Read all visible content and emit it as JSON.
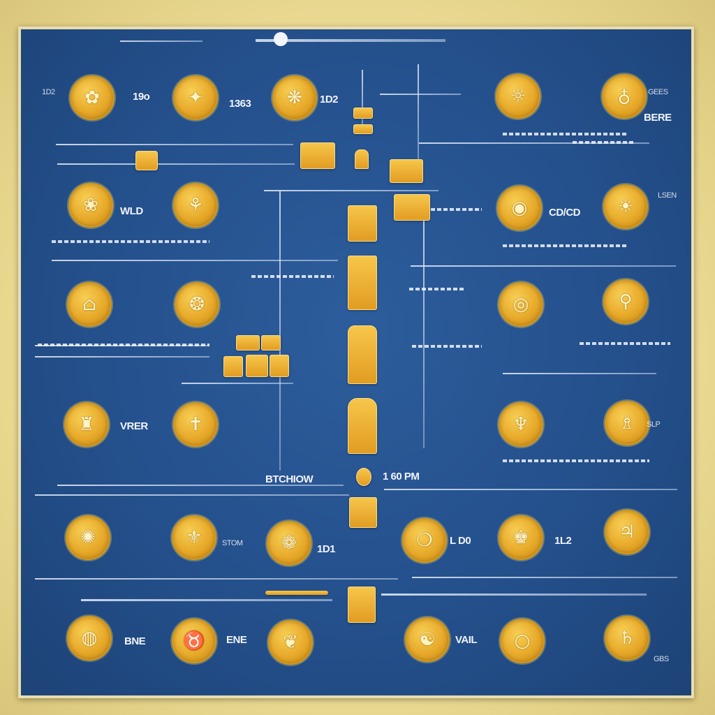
{
  "colors": {
    "board": "#24508c",
    "frame": "#e9ddb0",
    "coin_gold": "#e7a92a",
    "line": "#e6eefa"
  },
  "coins": [
    {
      "icon": "ornament-coin-icon"
    },
    {
      "icon": "ornament-coin-icon"
    },
    {
      "icon": "ornament-coin-icon"
    },
    {
      "icon": "ornament-coin-icon"
    },
    {
      "icon": "ornament-coin-icon"
    },
    {
      "icon": "ornament-coin-icon"
    },
    {
      "icon": "ornament-coin-icon"
    },
    {
      "icon": "ornament-coin-icon"
    },
    {
      "icon": "ornament-coin-icon"
    },
    {
      "icon": "ornament-coin-icon"
    },
    {
      "icon": "ornament-coin-icon"
    },
    {
      "icon": "ornament-coin-icon"
    },
    {
      "icon": "ornament-coin-icon"
    },
    {
      "icon": "ornament-coin-icon"
    },
    {
      "icon": "ornament-coin-icon"
    },
    {
      "icon": "ornament-coin-icon"
    },
    {
      "icon": "ornament-coin-icon"
    },
    {
      "icon": "ornament-coin-icon"
    },
    {
      "icon": "ornament-coin-icon"
    },
    {
      "icon": "ornament-coin-icon"
    },
    {
      "icon": "ornament-coin-icon"
    },
    {
      "icon": "ornament-coin-icon"
    },
    {
      "icon": "ornament-coin-icon"
    },
    {
      "icon": "ornament-coin-icon"
    },
    {
      "icon": "ornament-coin-icon"
    },
    {
      "icon": "ornament-coin-icon"
    },
    {
      "icon": "ornament-coin-icon"
    },
    {
      "icon": "ornament-coin-icon"
    },
    {
      "icon": "ornament-coin-icon"
    },
    {
      "icon": "ornament-coin-icon"
    },
    {
      "icon": "ornament-coin-icon"
    },
    {
      "icon": "ornament-coin-icon"
    }
  ],
  "labels": {
    "l1": "1D2",
    "l2": "1363",
    "l3": "1D2",
    "l4": "GEES",
    "l5": "BERE",
    "l6": "19o",
    "l7": "CD/CD",
    "l8": "WLD",
    "l9": "1 60 PM",
    "l10": "BTCHIOW",
    "l11": "1D1",
    "l12": "VAIL",
    "l13": "L D0",
    "l14": "ENE",
    "l15": "STOM",
    "l16": "SLP",
    "l17": "1L2",
    "l18": "BNE",
    "l19": "VRER",
    "l20": "LSEN",
    "l21": "GBS"
  }
}
